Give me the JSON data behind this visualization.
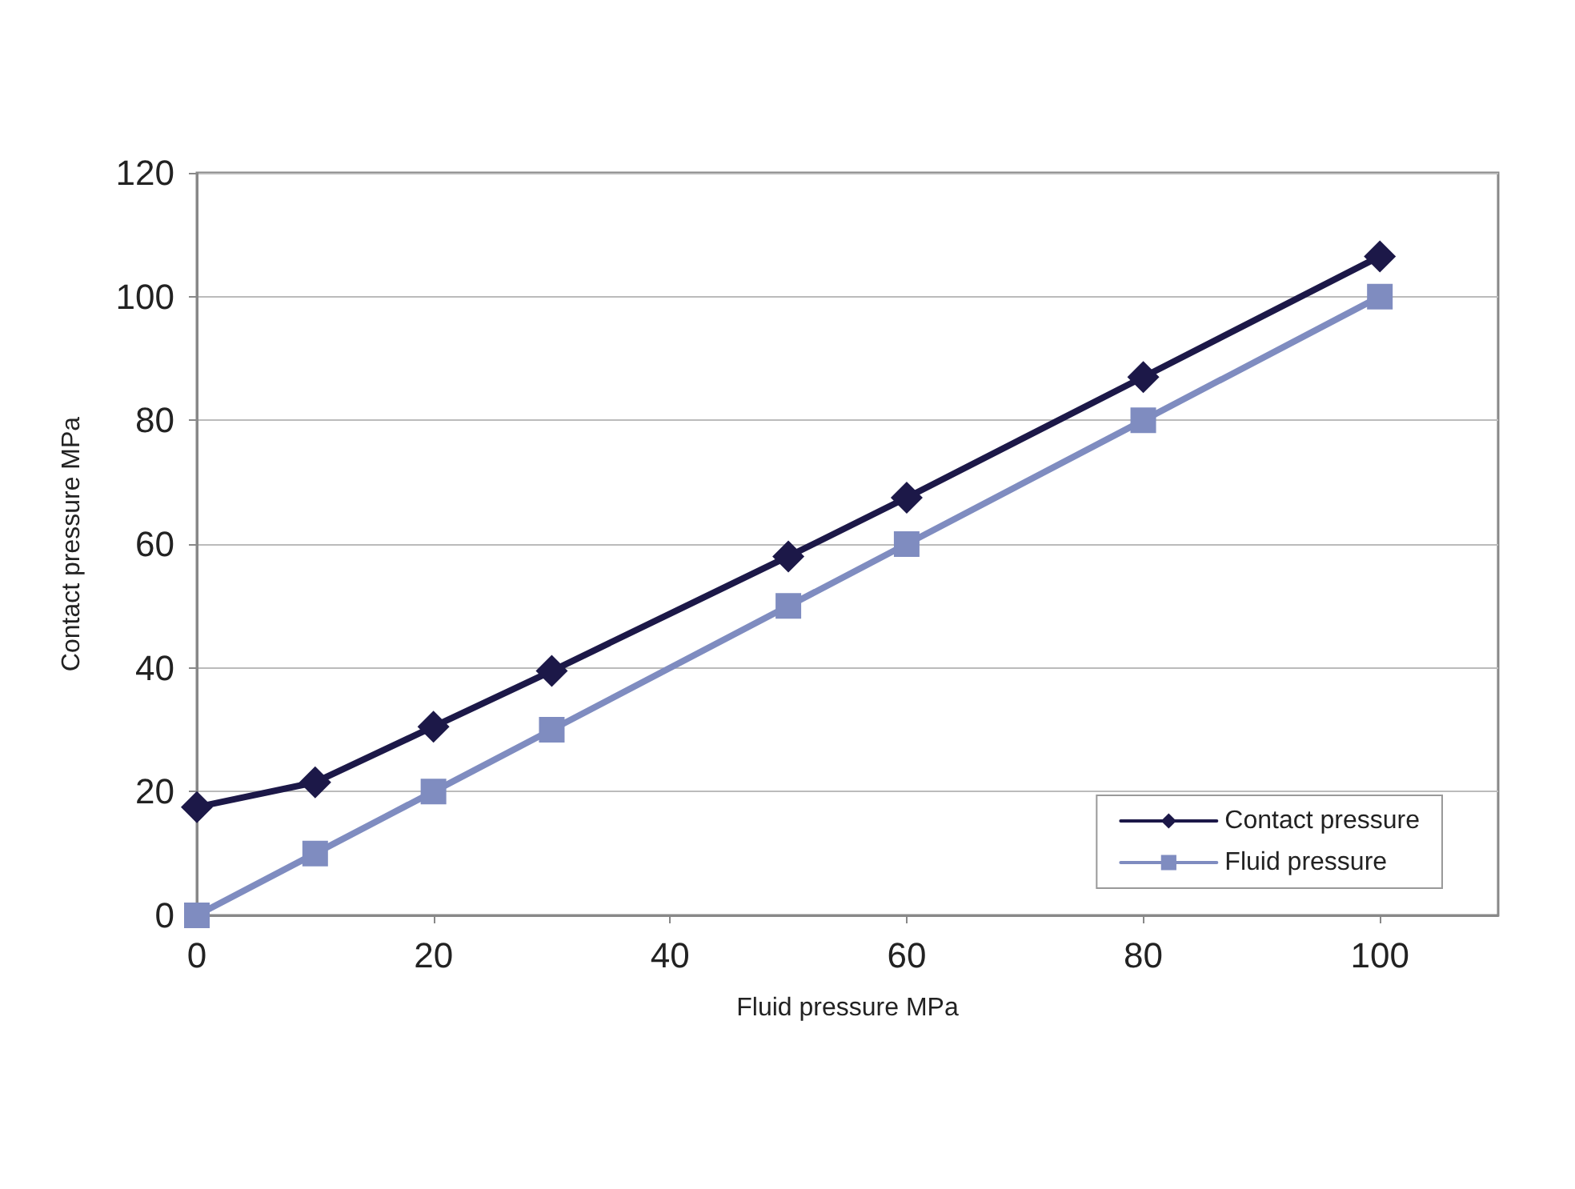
{
  "chart_data": {
    "type": "line",
    "xlabel": "Fluid pressure MPa",
    "ylabel": "Contact pressure MPa",
    "x": [
      0,
      10,
      20,
      30,
      50,
      60,
      80,
      100
    ],
    "series": [
      {
        "name": "Contact pressure",
        "color": "#1c1848",
        "marker": "diamond",
        "values": [
          17.5,
          21.5,
          30.5,
          39.5,
          58,
          67.5,
          87,
          106.5
        ]
      },
      {
        "name": "Fluid pressure",
        "color": "#7f8cc0",
        "marker": "square",
        "values": [
          0,
          10,
          20,
          30,
          50,
          60,
          80,
          100
        ]
      }
    ],
    "xlim": [
      0,
      110
    ],
    "xticks": [
      0,
      20,
      40,
      60,
      80,
      100
    ],
    "ylim": [
      0,
      120
    ],
    "yticks": [
      0,
      20,
      40,
      60,
      80,
      100,
      120
    ],
    "grid": "y",
    "legend": "bottom right",
    "line_style": "solid"
  }
}
